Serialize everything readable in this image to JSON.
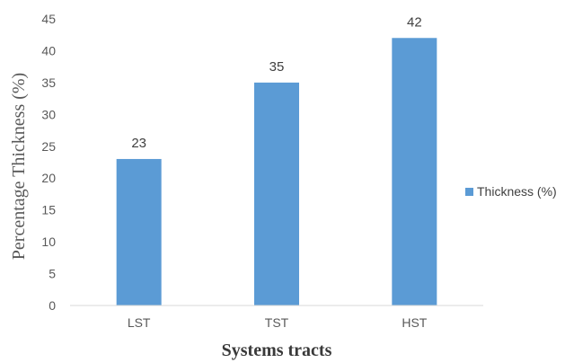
{
  "chart_data": {
    "type": "bar",
    "categories": [
      "LST",
      "TST",
      "HST"
    ],
    "series": [
      {
        "name": "Thickness (%)",
        "values": [
          23,
          35,
          42
        ],
        "color": "#5b9bd5"
      }
    ],
    "data_labels": [
      "23",
      "35",
      "42"
    ],
    "xlabel": "Systems tracts",
    "ylabel": "Percentage Thickness (%)",
    "ylim": [
      0,
      45
    ],
    "yticks": [
      "0",
      "5",
      "10",
      "15",
      "20",
      "25",
      "30",
      "35",
      "40",
      "45"
    ],
    "grid": false,
    "legend_position": "right"
  }
}
